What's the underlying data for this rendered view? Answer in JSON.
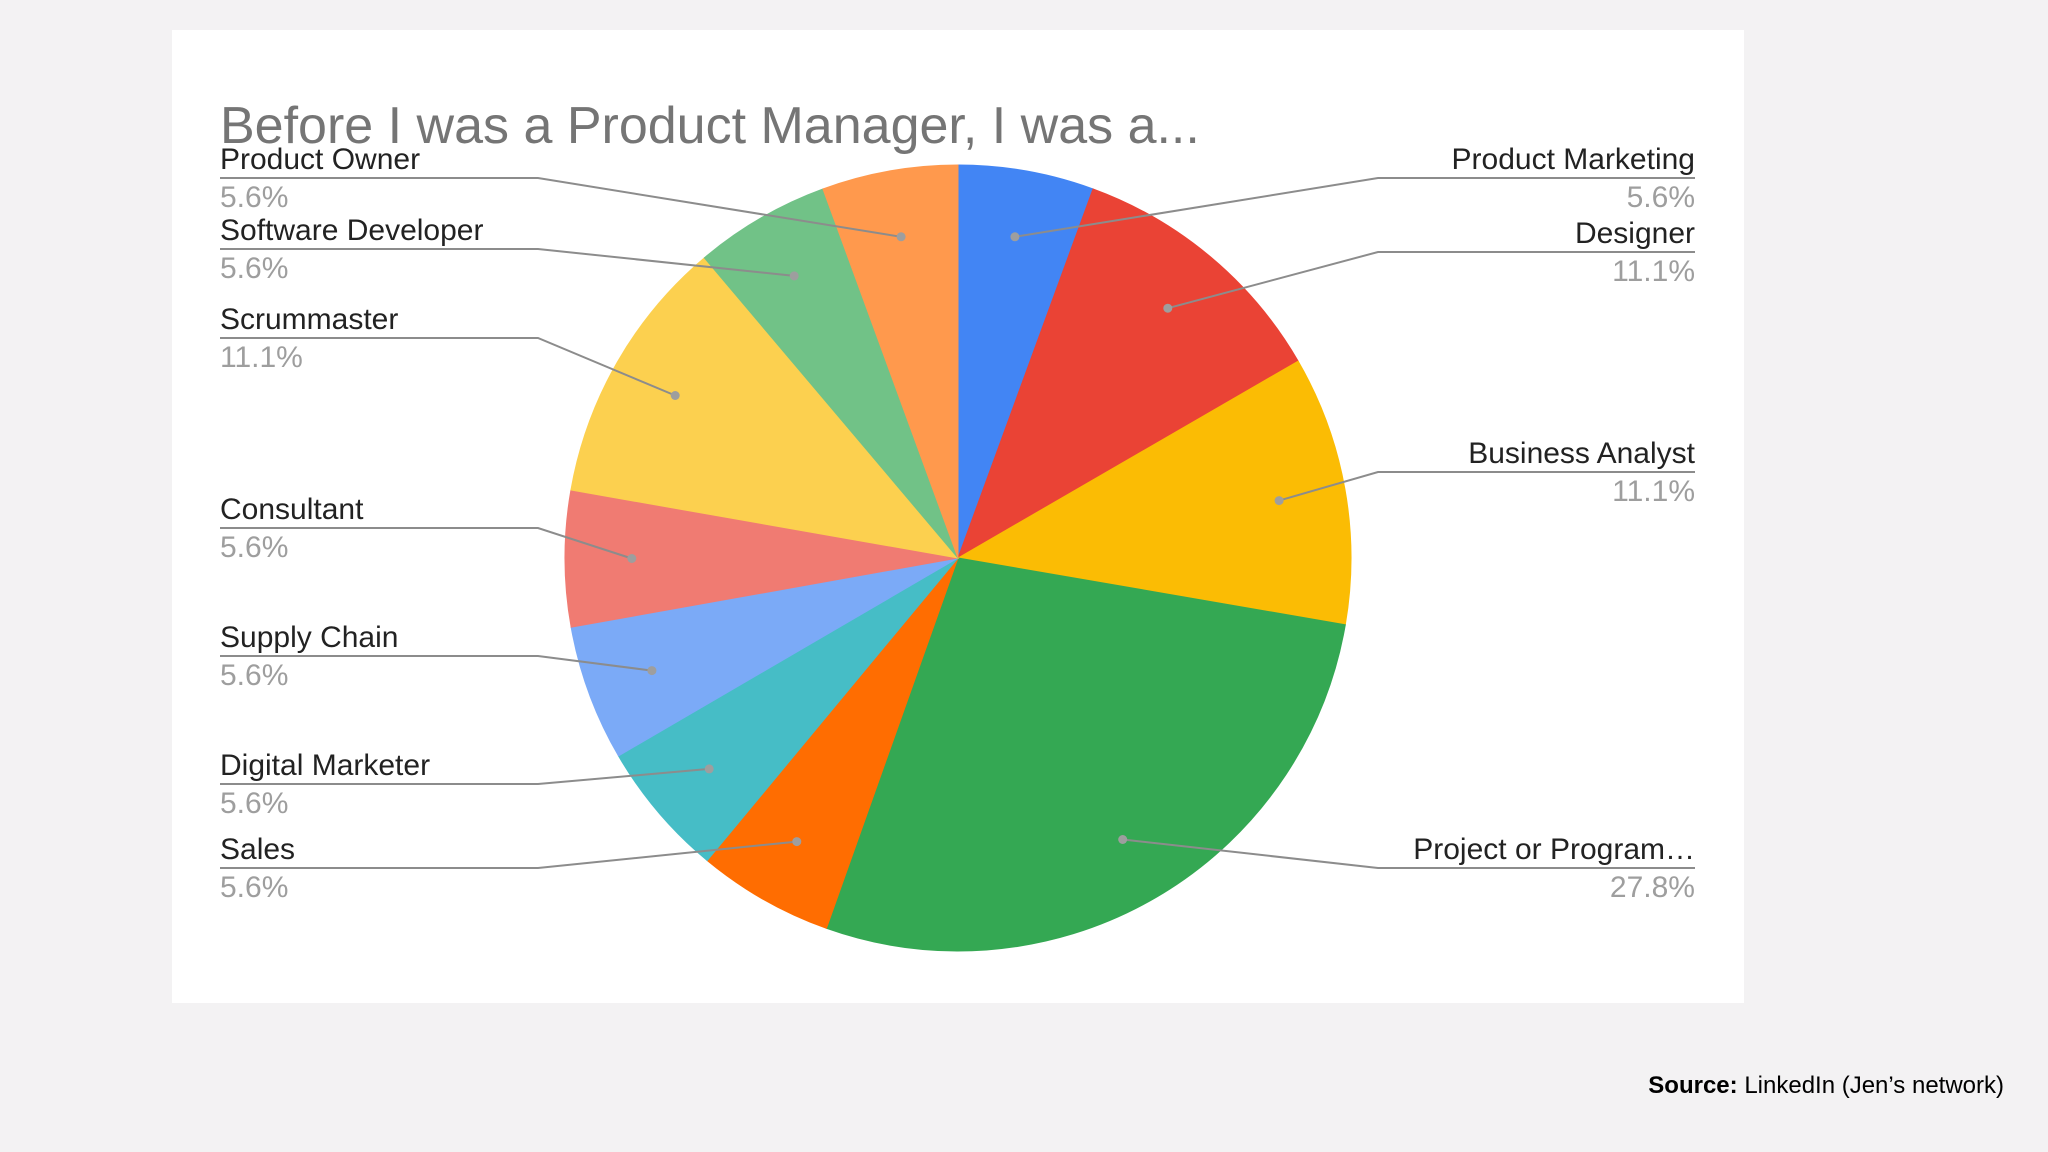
{
  "source": {
    "label": "Source:",
    "text": "LinkedIn (Jen’s network)"
  },
  "chart_data": {
    "type": "pie",
    "title": "Before I was a Product Manager, I was a...",
    "start_angle_deg": 0,
    "direction": "clockwise",
    "slices": [
      {
        "label": "Product Marketing",
        "value": 5.6,
        "pct": "5.6%",
        "color": "#4285f4",
        "side": "right"
      },
      {
        "label": "Designer",
        "value": 11.1,
        "pct": "11.1%",
        "color": "#ea4335",
        "side": "right"
      },
      {
        "label": "Business Analyst",
        "value": 11.1,
        "pct": "11.1%",
        "color": "#fbbc04",
        "side": "right"
      },
      {
        "label": "Project or Program…",
        "value": 27.8,
        "pct": "27.8%",
        "color": "#34a853",
        "side": "right"
      },
      {
        "label": "Sales",
        "value": 5.6,
        "pct": "5.6%",
        "color": "#ff6d01",
        "side": "left"
      },
      {
        "label": "Digital Marketer",
        "value": 5.6,
        "pct": "5.6%",
        "color": "#46bdc6",
        "side": "left"
      },
      {
        "label": "Supply Chain",
        "value": 5.6,
        "pct": "5.6%",
        "color": "#7baaf7",
        "side": "left"
      },
      {
        "label": "Consultant",
        "value": 5.6,
        "pct": "5.6%",
        "color": "#f07b72",
        "side": "left"
      },
      {
        "label": "Scrummaster",
        "value": 11.1,
        "pct": "11.1%",
        "color": "#fcd04f",
        "side": "left"
      },
      {
        "label": "Software Developer",
        "value": 5.6,
        "pct": "5.6%",
        "color": "#71c287",
        "side": "left"
      },
      {
        "label": "Product Owner",
        "value": 5.6,
        "pct": "5.6%",
        "color": "#ff994d",
        "side": "left"
      }
    ],
    "legend": "labels-with-leader-lines"
  }
}
